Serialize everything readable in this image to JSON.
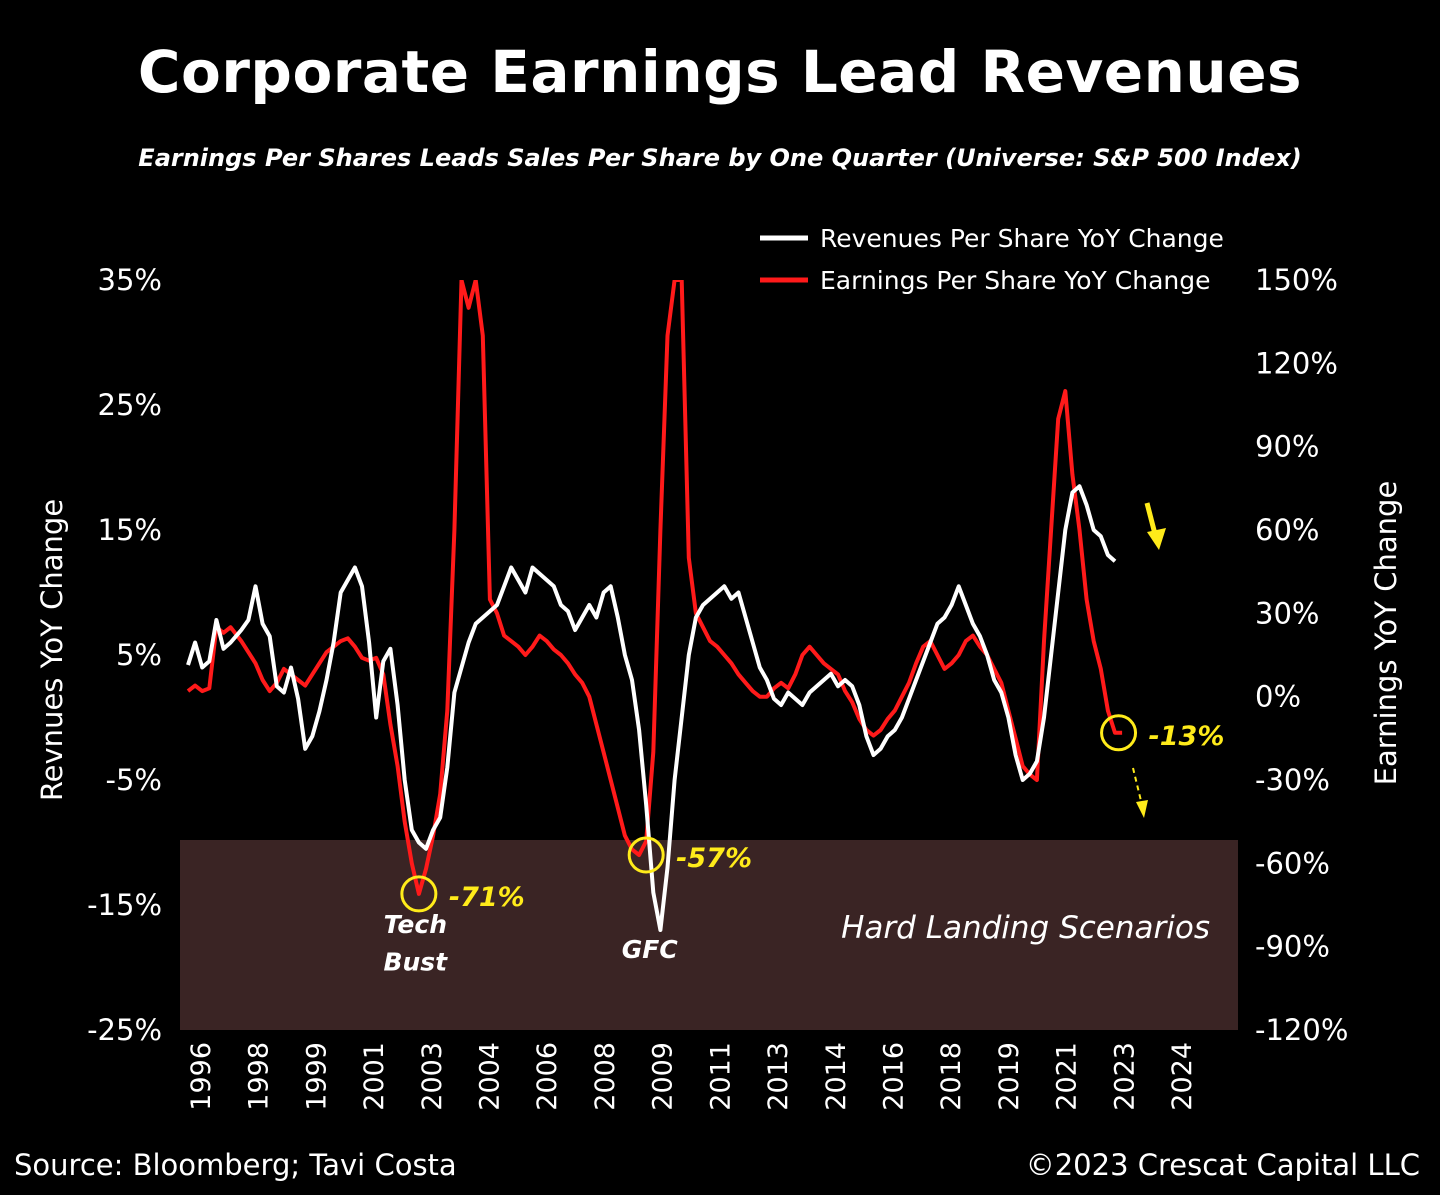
{
  "title": "Corporate Earnings Lead Revenues",
  "subtitle": "Earnings Per Shares Leads Sales Per Share by One Quarter (Universe: S&P 500 Index)",
  "source": "Source: Bloomberg; Tavi Costa",
  "copyright": "©2023 Crescat Capital LLC",
  "colors": {
    "background": "#000000",
    "revenues": "#ffffff",
    "earnings": "#ff1a1a",
    "highlight": "#ffeb1a",
    "shade": "#3a2424"
  },
  "chart_data": {
    "type": "line",
    "legend_position": "top-right",
    "left_axis": {
      "label": "Revnues YoY Change",
      "range": [
        -25,
        35
      ],
      "ticks": [
        "35%",
        "25%",
        "15%",
        "5%",
        "-5%",
        "-15%",
        "-25%"
      ]
    },
    "right_axis": {
      "label": "Earnings YoY Change",
      "range": [
        -120,
        150
      ],
      "ticks": [
        "150%",
        "120%",
        "90%",
        "60%",
        "30%",
        "0%",
        "-30%",
        "-60%",
        "-90%",
        "-120%"
      ]
    },
    "x_axis": {
      "range": [
        1996.0,
        2025.0
      ],
      "ticks": [
        "1996",
        "1998",
        "1999",
        "2001",
        "2003",
        "2004",
        "2006",
        "2008",
        "2009",
        "2011",
        "2013",
        "2014",
        "2016",
        "2018",
        "2019",
        "2021",
        "2023",
        "2024"
      ]
    },
    "series": [
      {
        "name": "Revenues Per Share YoY Change",
        "axis": "left",
        "points": [
          [
            1996.0,
            4.2
          ],
          [
            1996.2,
            6.0
          ],
          [
            1996.4,
            4.0
          ],
          [
            1996.6,
            4.5
          ],
          [
            1996.8,
            7.8
          ],
          [
            1997.0,
            5.5
          ],
          [
            1997.2,
            6.0
          ],
          [
            1997.5,
            7.0
          ],
          [
            1997.7,
            7.8
          ],
          [
            1997.9,
            10.5
          ],
          [
            1998.1,
            7.5
          ],
          [
            1998.3,
            6.5
          ],
          [
            1998.5,
            2.5
          ],
          [
            1998.7,
            2.0
          ],
          [
            1998.9,
            4.0
          ],
          [
            1999.1,
            1.5
          ],
          [
            1999.3,
            -2.5
          ],
          [
            1999.5,
            -1.5
          ],
          [
            1999.7,
            0.5
          ],
          [
            1999.9,
            3.0
          ],
          [
            2000.1,
            6.0
          ],
          [
            2000.3,
            10.0
          ],
          [
            2000.5,
            11.0
          ],
          [
            2000.7,
            12.0
          ],
          [
            2000.9,
            10.5
          ],
          [
            2001.1,
            6.0
          ],
          [
            2001.3,
            0.0
          ],
          [
            2001.5,
            4.5
          ],
          [
            2001.7,
            5.5
          ],
          [
            2001.9,
            1.0
          ],
          [
            2002.1,
            -5.0
          ],
          [
            2002.3,
            -9.0
          ],
          [
            2002.5,
            -10.0
          ],
          [
            2002.7,
            -10.5
          ],
          [
            2002.9,
            -9.0
          ],
          [
            2003.1,
            -8.0
          ],
          [
            2003.3,
            -4.0
          ],
          [
            2003.5,
            2.0
          ],
          [
            2003.7,
            4.0
          ],
          [
            2003.9,
            6.0
          ],
          [
            2004.1,
            7.5
          ],
          [
            2004.3,
            8.0
          ],
          [
            2004.5,
            8.5
          ],
          [
            2004.7,
            9.0
          ],
          [
            2004.9,
            10.5
          ],
          [
            2005.1,
            12.0
          ],
          [
            2005.3,
            11.0
          ],
          [
            2005.5,
            10.0
          ],
          [
            2005.7,
            12.0
          ],
          [
            2005.9,
            11.5
          ],
          [
            2006.1,
            11.0
          ],
          [
            2006.3,
            10.5
          ],
          [
            2006.5,
            9.0
          ],
          [
            2006.7,
            8.5
          ],
          [
            2006.9,
            7.0
          ],
          [
            2007.1,
            8.0
          ],
          [
            2007.3,
            9.0
          ],
          [
            2007.5,
            8.0
          ],
          [
            2007.7,
            10.0
          ],
          [
            2007.9,
            10.5
          ],
          [
            2008.1,
            8.0
          ],
          [
            2008.3,
            5.0
          ],
          [
            2008.5,
            3.0
          ],
          [
            2008.7,
            -1.0
          ],
          [
            2008.9,
            -7.0
          ],
          [
            2009.1,
            -14.0
          ],
          [
            2009.3,
            -17.0
          ],
          [
            2009.5,
            -12.0
          ],
          [
            2009.7,
            -5.0
          ],
          [
            2009.9,
            0.0
          ],
          [
            2010.1,
            5.0
          ],
          [
            2010.3,
            8.0
          ],
          [
            2010.5,
            9.0
          ],
          [
            2010.7,
            9.5
          ],
          [
            2010.9,
            10.0
          ],
          [
            2011.1,
            10.5
          ],
          [
            2011.3,
            9.5
          ],
          [
            2011.5,
            10.0
          ],
          [
            2011.7,
            8.0
          ],
          [
            2011.9,
            6.0
          ],
          [
            2012.1,
            4.0
          ],
          [
            2012.3,
            3.0
          ],
          [
            2012.5,
            1.5
          ],
          [
            2012.7,
            1.0
          ],
          [
            2012.9,
            2.0
          ],
          [
            2013.1,
            1.5
          ],
          [
            2013.3,
            1.0
          ],
          [
            2013.5,
            2.0
          ],
          [
            2013.7,
            2.5
          ],
          [
            2013.9,
            3.0
          ],
          [
            2014.1,
            3.5
          ],
          [
            2014.3,
            2.5
          ],
          [
            2014.5,
            3.0
          ],
          [
            2014.7,
            2.5
          ],
          [
            2014.9,
            1.0
          ],
          [
            2015.1,
            -1.5
          ],
          [
            2015.3,
            -3.0
          ],
          [
            2015.5,
            -2.5
          ],
          [
            2015.7,
            -1.5
          ],
          [
            2015.9,
            -1.0
          ],
          [
            2016.1,
            0.0
          ],
          [
            2016.3,
            1.5
          ],
          [
            2016.5,
            3.0
          ],
          [
            2016.7,
            4.5
          ],
          [
            2016.9,
            6.0
          ],
          [
            2017.1,
            7.5
          ],
          [
            2017.3,
            8.0
          ],
          [
            2017.5,
            9.0
          ],
          [
            2017.7,
            10.5
          ],
          [
            2017.9,
            9.0
          ],
          [
            2018.1,
            7.5
          ],
          [
            2018.3,
            6.5
          ],
          [
            2018.5,
            5.0
          ],
          [
            2018.7,
            3.0
          ],
          [
            2018.9,
            2.0
          ],
          [
            2019.1,
            0.0
          ],
          [
            2019.3,
            -3.0
          ],
          [
            2019.5,
            -5.0
          ],
          [
            2019.7,
            -4.5
          ],
          [
            2019.9,
            -3.5
          ],
          [
            2020.1,
            0.0
          ],
          [
            2020.3,
            5.0
          ],
          [
            2020.5,
            10.0
          ],
          [
            2020.7,
            15.0
          ],
          [
            2020.9,
            18.0
          ],
          [
            2021.1,
            18.5
          ],
          [
            2021.3,
            17.0
          ],
          [
            2021.5,
            15.0
          ],
          [
            2021.7,
            14.5
          ],
          [
            2021.9,
            13.0
          ],
          [
            2022.1,
            12.5
          ]
        ]
      },
      {
        "name": "Earnings Per Share YoY Change",
        "axis": "right",
        "points": [
          [
            1996.0,
            2.0
          ],
          [
            1996.2,
            4.0
          ],
          [
            1996.4,
            2.0
          ],
          [
            1996.6,
            3.0
          ],
          [
            1996.8,
            25.0
          ],
          [
            1997.0,
            23.0
          ],
          [
            1997.2,
            25.0
          ],
          [
            1997.5,
            20.0
          ],
          [
            1997.7,
            16.0
          ],
          [
            1997.9,
            12.0
          ],
          [
            1998.1,
            6.0
          ],
          [
            1998.3,
            2.0
          ],
          [
            1998.5,
            5.0
          ],
          [
            1998.7,
            10.0
          ],
          [
            1998.9,
            8.0
          ],
          [
            1999.1,
            6.0
          ],
          [
            1999.3,
            4.0
          ],
          [
            1999.5,
            8.0
          ],
          [
            1999.7,
            12.0
          ],
          [
            1999.9,
            16.0
          ],
          [
            2000.1,
            18.0
          ],
          [
            2000.3,
            20.0
          ],
          [
            2000.5,
            21.0
          ],
          [
            2000.7,
            18.0
          ],
          [
            2000.9,
            14.0
          ],
          [
            2001.1,
            13.0
          ],
          [
            2001.3,
            14.0
          ],
          [
            2001.5,
            8.0
          ],
          [
            2001.7,
            -10.0
          ],
          [
            2001.9,
            -25.0
          ],
          [
            2002.1,
            -45.0
          ],
          [
            2002.3,
            -60.0
          ],
          [
            2002.5,
            -71.0
          ],
          [
            2002.7,
            -62.0
          ],
          [
            2002.9,
            -50.0
          ],
          [
            2003.1,
            -35.0
          ],
          [
            2003.3,
            -5.0
          ],
          [
            2003.5,
            60.0
          ],
          [
            2003.7,
            150.0
          ],
          [
            2003.9,
            140.0
          ],
          [
            2004.1,
            150.0
          ],
          [
            2004.3,
            130.0
          ],
          [
            2004.5,
            35.0
          ],
          [
            2004.7,
            30.0
          ],
          [
            2004.9,
            22.0
          ],
          [
            2005.1,
            20.0
          ],
          [
            2005.3,
            18.0
          ],
          [
            2005.5,
            15.0
          ],
          [
            2005.7,
            18.0
          ],
          [
            2005.9,
            22.0
          ],
          [
            2006.1,
            20.0
          ],
          [
            2006.3,
            17.0
          ],
          [
            2006.5,
            15.0
          ],
          [
            2006.7,
            12.0
          ],
          [
            2006.9,
            8.0
          ],
          [
            2007.1,
            5.0
          ],
          [
            2007.3,
            0.0
          ],
          [
            2007.5,
            -10.0
          ],
          [
            2007.7,
            -20.0
          ],
          [
            2007.9,
            -30.0
          ],
          [
            2008.1,
            -40.0
          ],
          [
            2008.3,
            -50.0
          ],
          [
            2008.5,
            -55.0
          ],
          [
            2008.7,
            -57.0
          ],
          [
            2008.9,
            -52.0
          ],
          [
            2009.1,
            -20.0
          ],
          [
            2009.3,
            60.0
          ],
          [
            2009.5,
            130.0
          ],
          [
            2009.7,
            150.0
          ],
          [
            2009.9,
            150.0
          ],
          [
            2010.1,
            50.0
          ],
          [
            2010.3,
            30.0
          ],
          [
            2010.5,
            25.0
          ],
          [
            2010.7,
            20.0
          ],
          [
            2010.9,
            18.0
          ],
          [
            2011.1,
            15.0
          ],
          [
            2011.3,
            12.0
          ],
          [
            2011.5,
            8.0
          ],
          [
            2011.7,
            5.0
          ],
          [
            2011.9,
            2.0
          ],
          [
            2012.1,
            0.0
          ],
          [
            2012.3,
            0.0
          ],
          [
            2012.5,
            3.0
          ],
          [
            2012.7,
            5.0
          ],
          [
            2012.9,
            3.0
          ],
          [
            2013.1,
            8.0
          ],
          [
            2013.3,
            15.0
          ],
          [
            2013.5,
            18.0
          ],
          [
            2013.7,
            15.0
          ],
          [
            2013.9,
            12.0
          ],
          [
            2014.1,
            10.0
          ],
          [
            2014.3,
            8.0
          ],
          [
            2014.5,
            2.0
          ],
          [
            2014.7,
            -2.0
          ],
          [
            2014.9,
            -8.0
          ],
          [
            2015.1,
            -12.0
          ],
          [
            2015.3,
            -14.0
          ],
          [
            2015.5,
            -12.0
          ],
          [
            2015.7,
            -8.0
          ],
          [
            2015.9,
            -5.0
          ],
          [
            2016.1,
            0.0
          ],
          [
            2016.3,
            5.0
          ],
          [
            2016.5,
            12.0
          ],
          [
            2016.7,
            18.0
          ],
          [
            2016.9,
            20.0
          ],
          [
            2017.1,
            15.0
          ],
          [
            2017.3,
            10.0
          ],
          [
            2017.5,
            12.0
          ],
          [
            2017.7,
            15.0
          ],
          [
            2017.9,
            20.0
          ],
          [
            2018.1,
            22.0
          ],
          [
            2018.3,
            18.0
          ],
          [
            2018.5,
            15.0
          ],
          [
            2018.7,
            10.0
          ],
          [
            2018.9,
            5.0
          ],
          [
            2019.1,
            -5.0
          ],
          [
            2019.3,
            -15.0
          ],
          [
            2019.5,
            -25.0
          ],
          [
            2019.7,
            -28.0
          ],
          [
            2019.9,
            -30.0
          ],
          [
            2020.1,
            20.0
          ],
          [
            2020.3,
            60.0
          ],
          [
            2020.5,
            100.0
          ],
          [
            2020.7,
            110.0
          ],
          [
            2020.9,
            80.0
          ],
          [
            2021.1,
            60.0
          ],
          [
            2021.3,
            35.0
          ],
          [
            2021.5,
            20.0
          ],
          [
            2021.7,
            10.0
          ],
          [
            2021.9,
            -5.0
          ],
          [
            2022.1,
            -13.0
          ],
          [
            2022.3,
            -13.0
          ]
        ]
      }
    ],
    "annotations": [
      {
        "label": "-71%",
        "x": 2002.5,
        "value": -71,
        "axis": "right"
      },
      {
        "label": "-57%",
        "x": 2008.9,
        "value": -57,
        "axis": "right"
      },
      {
        "label": "-13%",
        "x": 2022.2,
        "value": -13,
        "axis": "right"
      },
      {
        "label": "Tech",
        "x": 2002.4,
        "value": -16.5,
        "axis": "left"
      },
      {
        "label": "Bust",
        "x": 2002.4,
        "value": -19.5,
        "axis": "left"
      },
      {
        "label": "GFC",
        "x": 2009.0,
        "value": -18.5,
        "axis": "left"
      }
    ],
    "shaded_region": {
      "label": "Hard Landing Scenarios",
      "from": -25,
      "to": -9.8,
      "axis": "left"
    }
  }
}
